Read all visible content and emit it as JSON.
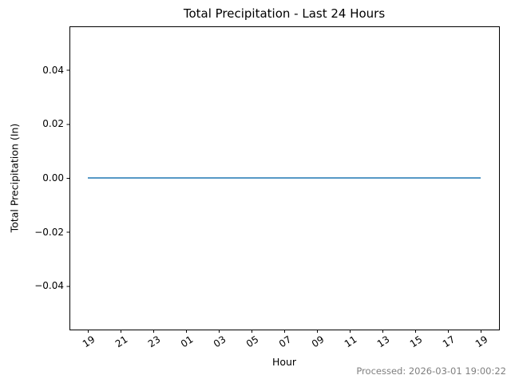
{
  "window": {
    "background": "#ffffff"
  },
  "chart": {
    "footer": "Processed: 2026-03-01 19:00:22",
    "colors": {
      "axis": "#000000",
      "text": "#000000",
      "footer_text": "#808080",
      "line": "#1f77b4",
      "background": "#ffffff"
    }
  },
  "chart_data": {
    "type": "line",
    "title": "Total Precipitation - Last 24 Hours",
    "xlabel": "Hour",
    "ylabel": "Total Precipitation (In)",
    "x_hours": [
      "19",
      "20",
      "21",
      "22",
      "23",
      "00",
      "01",
      "02",
      "03",
      "04",
      "05",
      "06",
      "07",
      "08",
      "09",
      "10",
      "11",
      "12",
      "13",
      "14",
      "15",
      "16",
      "17",
      "18",
      "19"
    ],
    "x_tick_every": 2,
    "x_tick_labels": [
      "19",
      "21",
      "23",
      "01",
      "03",
      "05",
      "07",
      "09",
      "11",
      "13",
      "15",
      "17",
      "19"
    ],
    "series": [
      {
        "name": "total_precipitation",
        "color": "#1f77b4",
        "values": [
          0,
          0,
          0,
          0,
          0,
          0,
          0,
          0,
          0,
          0,
          0,
          0,
          0,
          0,
          0,
          0,
          0,
          0,
          0,
          0,
          0,
          0,
          0,
          0,
          0
        ]
      }
    ],
    "ylim": [
      -0.0561,
      0.0561
    ],
    "y_ticks": [
      0.04,
      0.02,
      0.0,
      -0.02,
      -0.04
    ],
    "y_tick_labels": [
      "0.04",
      "0.02",
      "0.00",
      "−0.02",
      "−0.04"
    ],
    "grid": false,
    "legend": null,
    "x_tick_rotation_deg": 33
  }
}
